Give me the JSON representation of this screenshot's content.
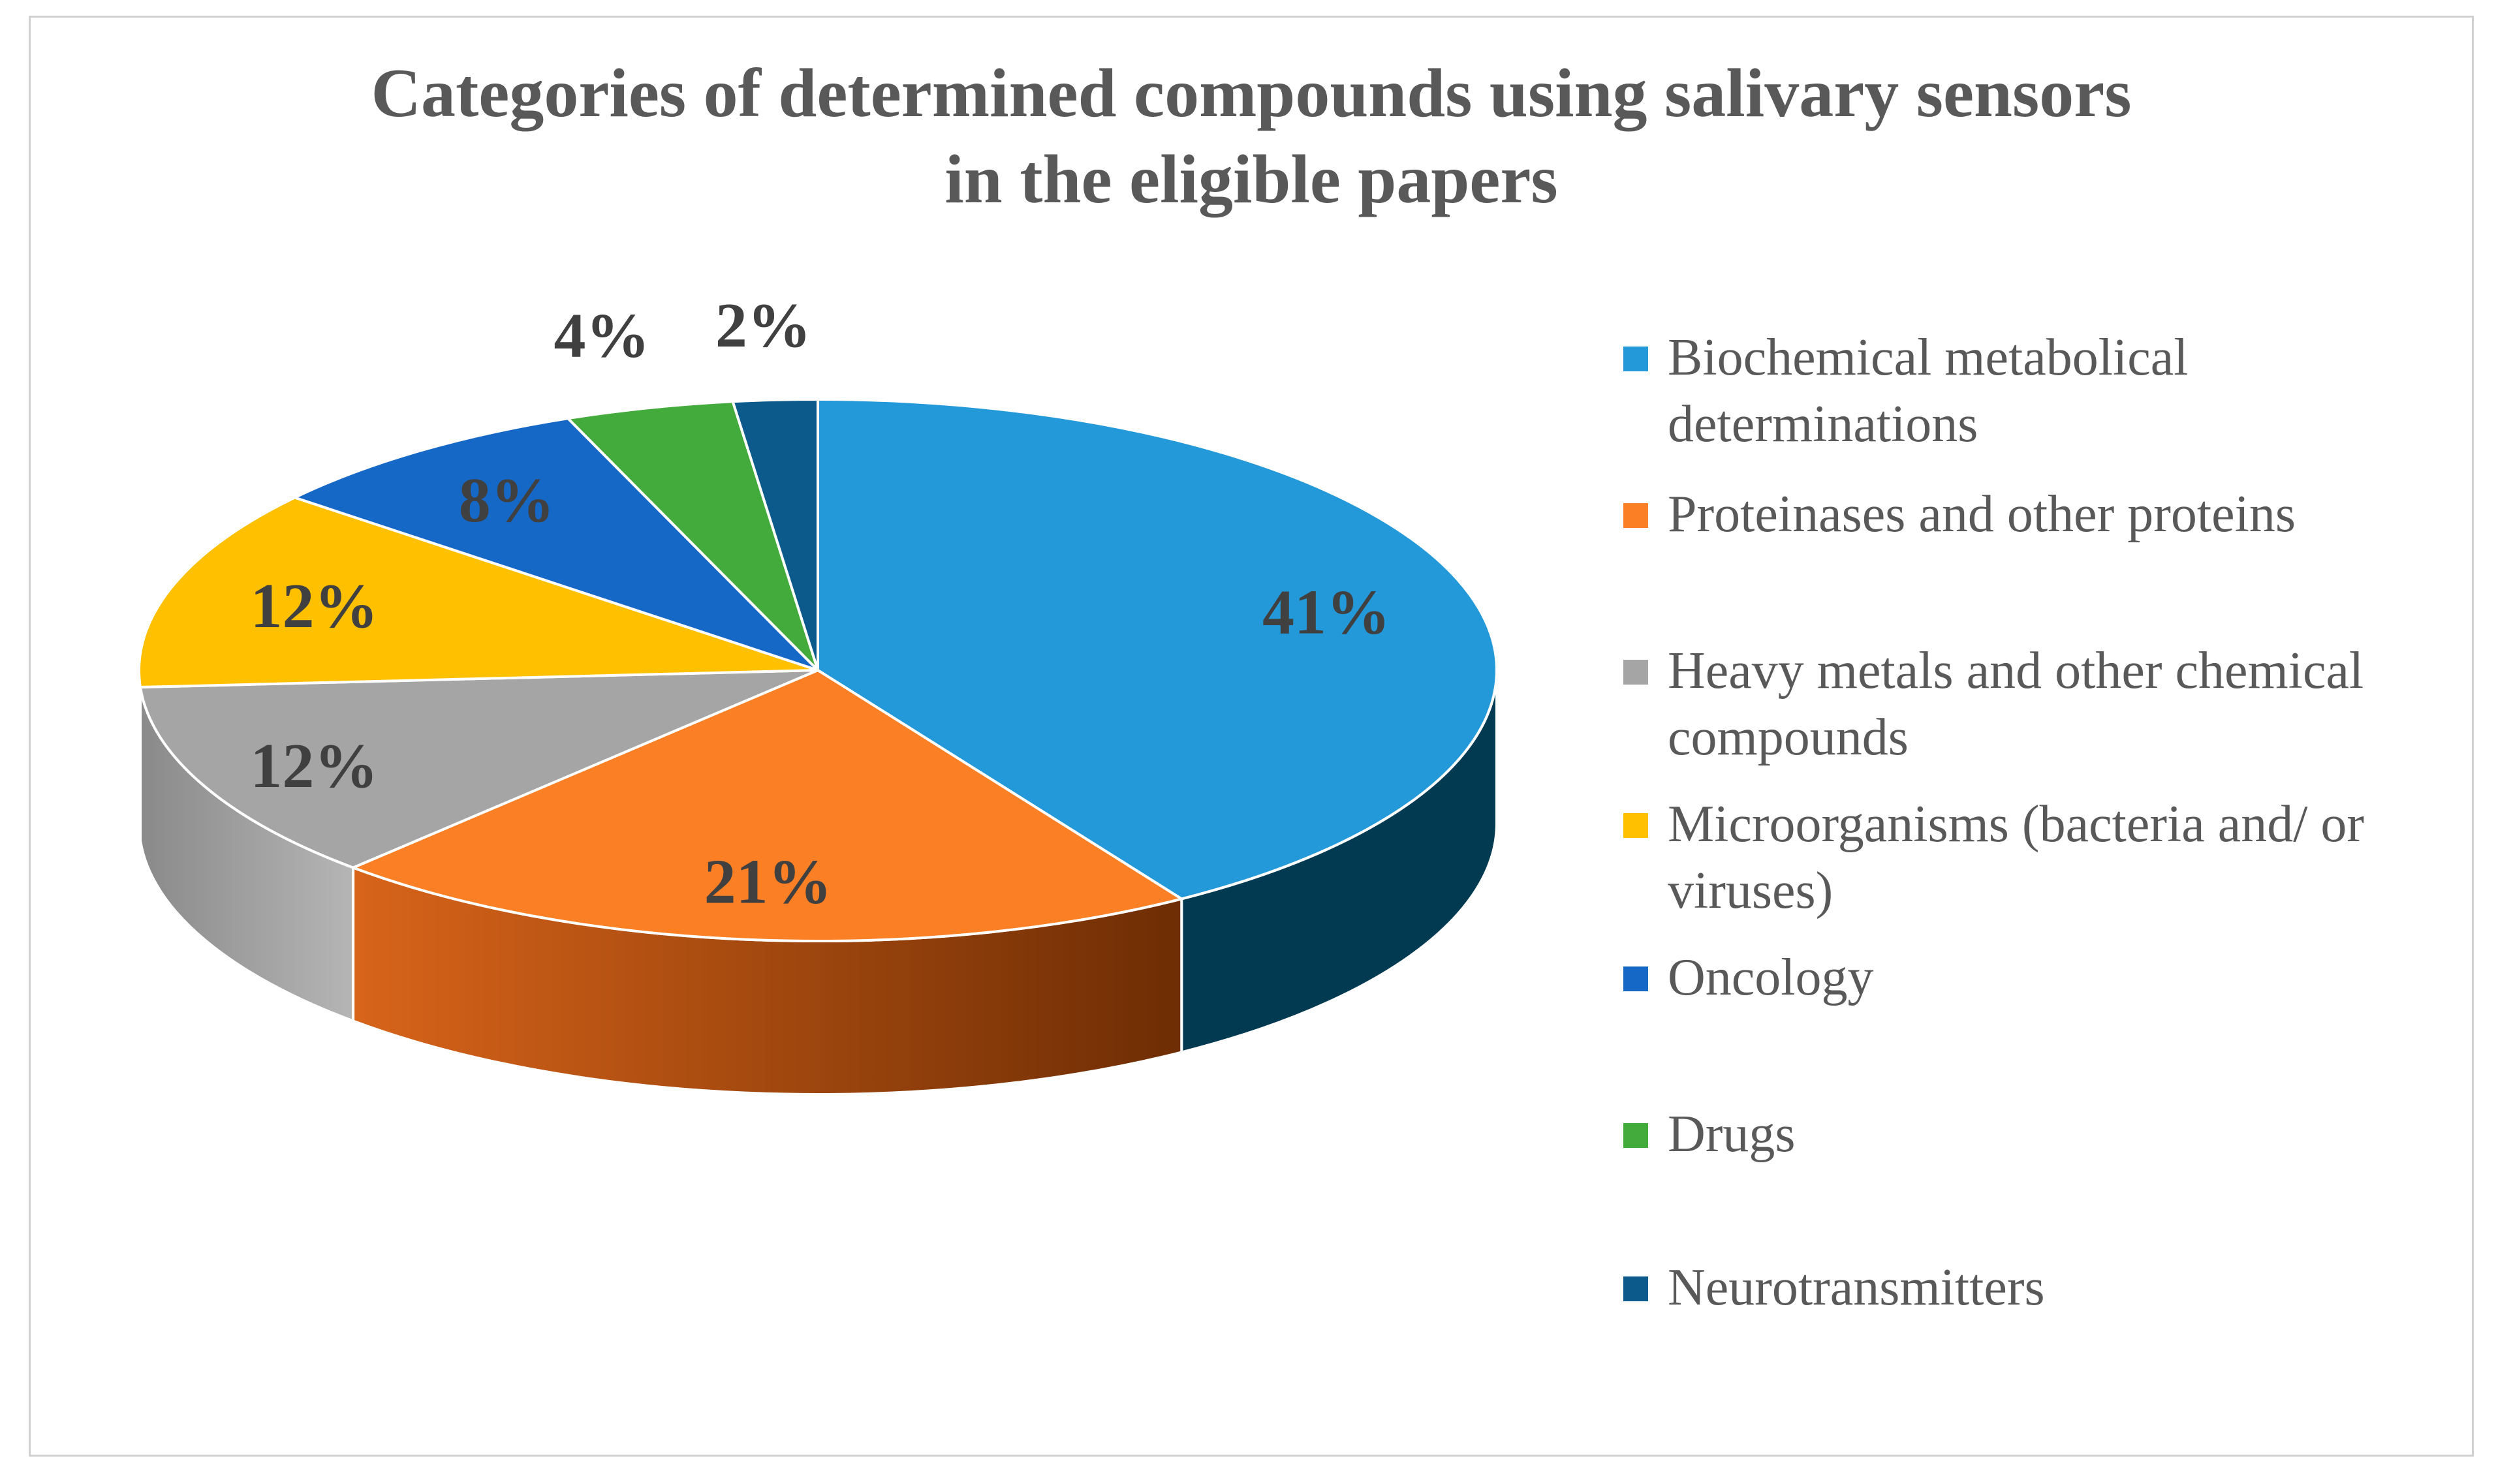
{
  "chart_data": {
    "type": "pie",
    "title_lines": [
      "Categories of determined compounds using salivary sensors",
      "in the eligible papers"
    ],
    "slices": [
      {
        "name": "Biochemical metabolical determinations",
        "value": 41,
        "label": "41%",
        "color": "#2499d9",
        "side_color": "#023a52"
      },
      {
        "name": "Proteinases and other proteins",
        "value": 21,
        "label": "21%",
        "color": "#fb7f24",
        "side_color": "#a34c0e"
      },
      {
        "name": "Heavy metals and other chemical compounds",
        "value": 12,
        "label": "12%",
        "color": "#a5a5a5",
        "side_color": "#8c8c8c"
      },
      {
        "name": "Microorganisms (bacteria and/ or viruses)",
        "value": 12,
        "label": "12%",
        "color": "#ffc000",
        "side_color": "#b38600"
      },
      {
        "name": "Oncology",
        "value": 8,
        "label": "8%",
        "color": "#1668c7",
        "side_color": "#0c3e78"
      },
      {
        "name": "Drugs",
        "value": 4,
        "label": "4%",
        "color": "#43ab3c",
        "side_color": "#2a6b26"
      },
      {
        "name": "Neurotransmitters",
        "value": 2,
        "label": "2%",
        "color": "#0c5a8c",
        "side_color": "#073552"
      }
    ],
    "legend_position": "right",
    "legend_lines": [
      [
        "Biochemical metabolical",
        "determinations"
      ],
      [
        "Proteinases and other proteins"
      ],
      [
        "Heavy metals and other chemical",
        "compounds"
      ],
      [
        "Microorganisms (bacteria and/ or",
        "viruses)"
      ],
      [
        "Oncology"
      ],
      [
        "Drugs"
      ],
      [
        "Neurotransmitters"
      ]
    ]
  }
}
